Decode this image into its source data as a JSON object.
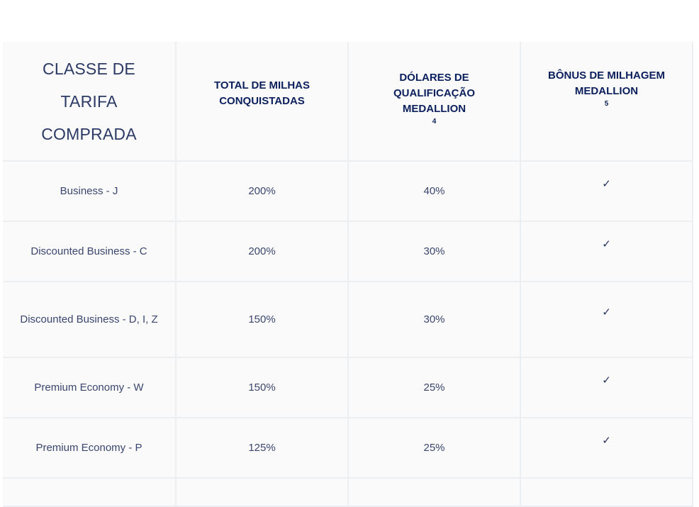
{
  "table": {
    "headers": {
      "fare_class": [
        "CLASSE DE",
        "TARIFA",
        "COMPRADA"
      ],
      "total_miles": [
        "TOTAL DE MILHAS",
        "CONQUISTADAS"
      ],
      "mqd": [
        "DÓLARES DE",
        "QUALIFICAÇÃO",
        "MEDALLION"
      ],
      "mqd_sup": "4",
      "bonus": [
        "BÔNUS DE MILHAGEM",
        "MEDALLION"
      ],
      "bonus_sup": "5"
    },
    "rows": [
      {
        "fare_class": "Business - J",
        "miles": "200%",
        "mqd": "40%",
        "bonus": "✓"
      },
      {
        "fare_class": "Discounted Business - C",
        "miles": "200%",
        "mqd": "30%",
        "bonus": "✓"
      },
      {
        "fare_class": "Discounted Business - D, I, Z",
        "miles": "150%",
        "mqd": "30%",
        "bonus": "✓"
      },
      {
        "fare_class": "Premium Economy - W",
        "miles": "150%",
        "mqd": "25%",
        "bonus": "✓"
      },
      {
        "fare_class": "Premium Economy - P",
        "miles": "125%",
        "mqd": "25%",
        "bonus": "✓"
      }
    ],
    "icons": {
      "bonus_mark": "checkmark-icon"
    },
    "colors": {
      "header_text": "#0b1f5c",
      "body_text": "#3a466e",
      "border": "#eceff2",
      "cell_bg": "#fafafa"
    }
  }
}
